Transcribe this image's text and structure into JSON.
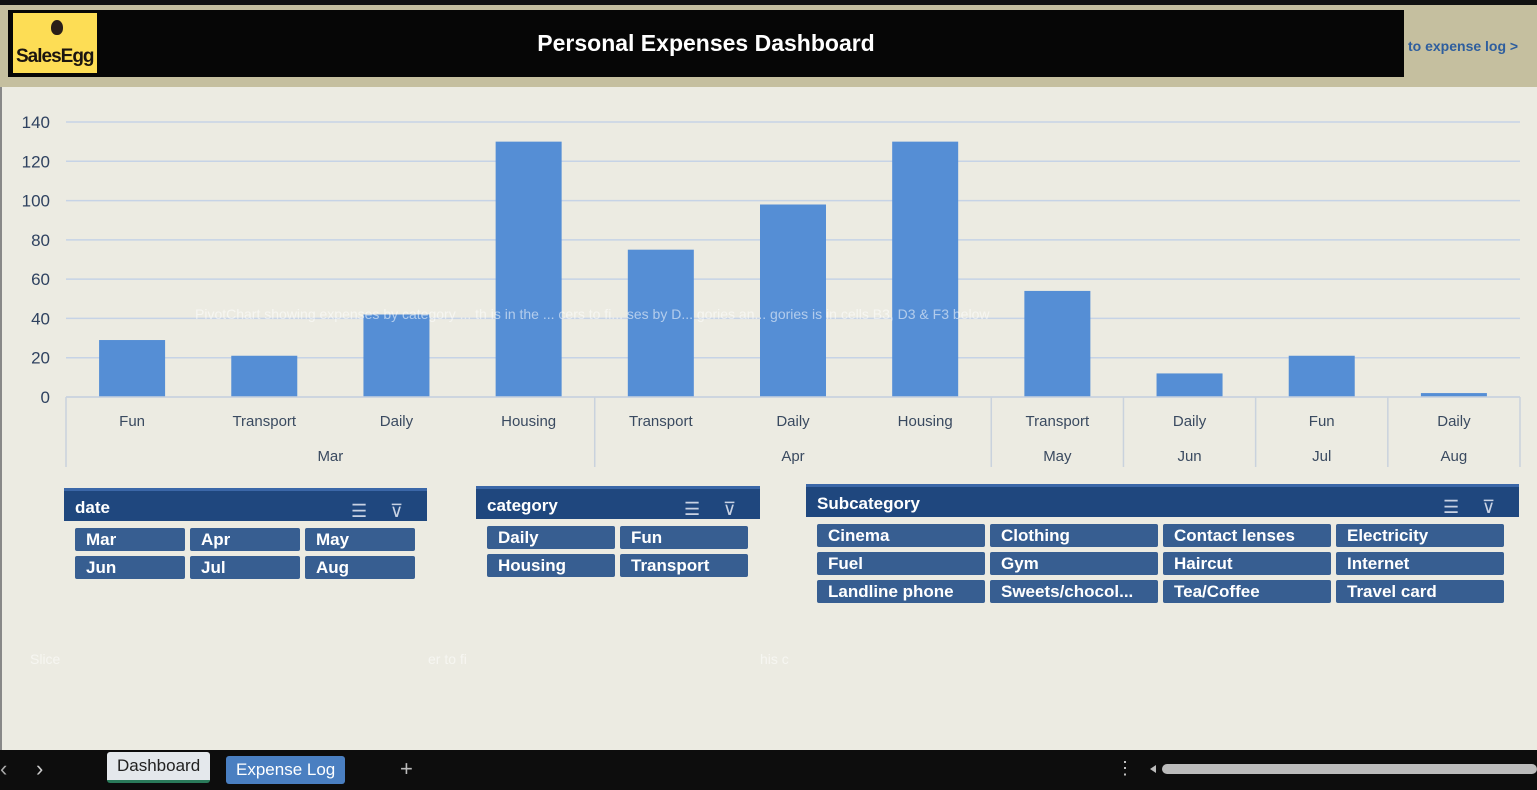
{
  "header": {
    "logo_text": "SalesEgg",
    "title": "Personal Expenses Dashboard",
    "link": "to expense log >"
  },
  "notes": {
    "chart_note": "PivotChart showing expenses by category ... th is in the ... cers to fi... ses by D... gories an... gories is in cells B3, D3 & F3 below",
    "slicer_note_1": "Slice",
    "slicer_note_2": "er to fi",
    "slicer_note_3": "his c"
  },
  "chart_data": {
    "type": "bar",
    "ylim": [
      0,
      140
    ],
    "yticks": [
      "0",
      "20",
      "40",
      "60",
      "80",
      "100",
      "120",
      "140"
    ],
    "categories": [
      "Fun",
      "Transport",
      "Daily",
      "Housing",
      "Transport",
      "Daily",
      "Housing",
      "Transport",
      "Daily",
      "Fun",
      "Daily"
    ],
    "groups": [
      {
        "label": "Mar",
        "count": 4
      },
      {
        "label": "Apr",
        "count": 3
      },
      {
        "label": "May",
        "count": 1
      },
      {
        "label": "Jun",
        "count": 1
      },
      {
        "label": "Jul",
        "count": 1
      },
      {
        "label": "Aug",
        "count": 1
      }
    ],
    "values": [
      29,
      21,
      42,
      130,
      75,
      98,
      130,
      54,
      12,
      21,
      2
    ],
    "bar_color": "#558ed5",
    "grid": true
  },
  "slicers": {
    "date": {
      "title": "date",
      "items": [
        "Mar",
        "Apr",
        "May",
        "Jun",
        "Jul",
        "Aug"
      ]
    },
    "category": {
      "title": "category",
      "items": [
        "Daily",
        "Fun",
        "Housing",
        "Transport"
      ]
    },
    "subcategory": {
      "title": "Subcategory",
      "items": [
        "Cinema",
        "Clothing",
        "Contact lenses",
        "Electricity",
        "Fuel",
        "Gym",
        "Haircut",
        "Internet",
        "Landline phone",
        "Sweets/chocol...",
        "Tea/Coffee",
        "Travel card"
      ]
    }
  },
  "sheets": {
    "tabs": [
      "Dashboard",
      "Expense Log"
    ],
    "add": "+",
    "prev": "‹",
    "next": "›",
    "more": "⋮"
  }
}
